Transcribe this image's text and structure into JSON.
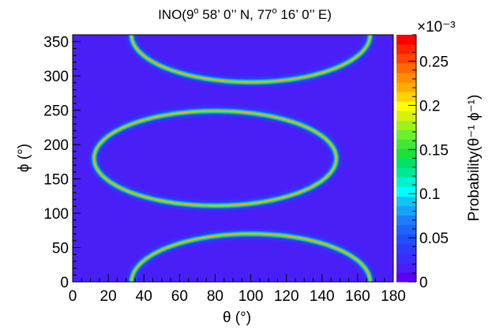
{
  "chart_data": {
    "type": "heatmap",
    "title": {
      "prefix": "INO(9",
      "sup1": "o",
      "middle": " 58’ 0’’ N, 77",
      "sup2": "o",
      "suffix": " 16’ 0’’ E)"
    },
    "xlabel": "θ (°)",
    "ylabel": "ϕ (°)",
    "xlim": [
      0,
      180
    ],
    "ylim": [
      0,
      360
    ],
    "x_ticks": [
      0,
      20,
      40,
      60,
      80,
      100,
      120,
      140,
      160,
      180
    ],
    "y_ticks": [
      0,
      50,
      100,
      150,
      200,
      250,
      300,
      350
    ],
    "colorbar": {
      "label": "Probability(θ⁻¹ ϕ⁻¹)",
      "multiplier": "×10⁻³",
      "range": [
        0,
        0.28
      ],
      "ticks": [
        0,
        0.05,
        0.1,
        0.15,
        0.2,
        0.25
      ],
      "tick_labels": [
        "0",
        "0.05",
        "0.1",
        "0.15",
        "0.2",
        "0.25"
      ],
      "colors": [
        "#5b00f2",
        "#4a1ff7",
        "#3a2df9",
        "#2c3cfa",
        "#1f4efa",
        "#1f64fa",
        "#1c7cf9",
        "#17a3f5",
        "#10c6f0",
        "#00ffff",
        "#00f2d2",
        "#00e79a",
        "#00e168",
        "#19e140",
        "#3ee835",
        "#6bf02d",
        "#a0f020",
        "#d8f00a",
        "#ffff00",
        "#ffd200",
        "#ffaa00",
        "#ff8c00",
        "#ff6a00",
        "#ff4400",
        "#ff2200",
        "#ff0000"
      ]
    },
    "background_value": 0.015,
    "features": [
      {
        "name": "lower arc",
        "center_theta": 100,
        "center_phi": 0,
        "half_width_theta": 68,
        "peak_phi": 70
      },
      {
        "name": "middle ellipse",
        "center_theta": 80,
        "center_phi": 180,
        "half_width_theta": 68,
        "half_height_phi": 70
      },
      {
        "name": "upper arc",
        "center_theta": 100,
        "center_phi": 360,
        "half_width_theta": 68,
        "trough_phi": 290
      }
    ]
  }
}
